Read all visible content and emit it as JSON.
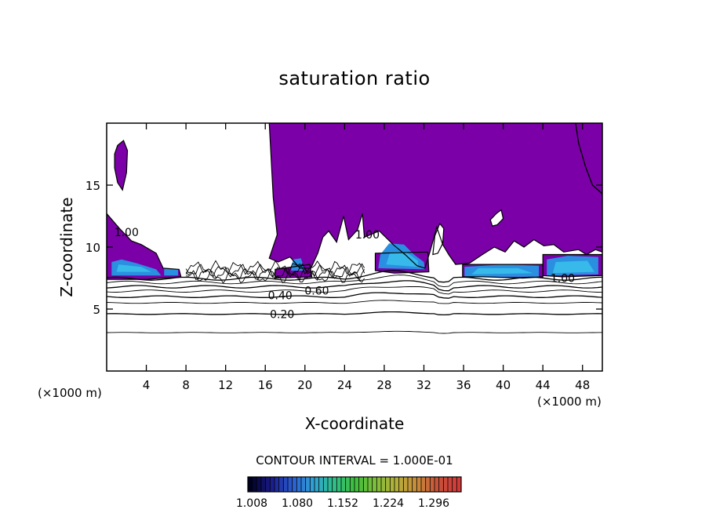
{
  "chart_data": {
    "type": "heatmap",
    "title": "saturation ratio",
    "xlabel": "X-coordinate",
    "ylabel": "Z-coordinate",
    "x_unit_left": "(×1000 m)",
    "x_unit_right": "(×1000 m)",
    "xlim": [
      0,
      50
    ],
    "ylim": [
      0,
      20
    ],
    "x_ticks": [
      4,
      8,
      12,
      16,
      20,
      24,
      28,
      32,
      36,
      40,
      44,
      48
    ],
    "x_tick_labels": [
      "4",
      "8",
      "12",
      "16",
      "20",
      "24",
      "28",
      "32",
      "36",
      "40",
      "44",
      "48"
    ],
    "y_ticks": [
      5,
      10,
      15
    ],
    "y_tick_labels": [
      "5",
      "10",
      "15"
    ],
    "contour_labels": [
      {
        "text": "0.20",
        "x": 17.7,
        "z": 4.6
      },
      {
        "text": "0.40",
        "x": 17.5,
        "z": 6.1
      },
      {
        "text": "0.60",
        "x": 21.2,
        "z": 6.5
      },
      {
        "text": "1.00",
        "x": 2.0,
        "z": 11.2
      },
      {
        "text": "1.00",
        "x": 26.3,
        "z": 11.0
      },
      {
        "text": "1.00",
        "x": 46.0,
        "z": 7.5
      }
    ],
    "contour_interval_text": "CONTOUR INTERVAL = 1.000E-01",
    "colorbar": {
      "range": [
        1.008,
        1.296
      ],
      "tick_labels": [
        "1.008",
        "1.080",
        "1.152",
        "1.224",
        "1.296"
      ],
      "colors": [
        "#000020",
        "#1a1a8a",
        "#2a5bd0",
        "#2fa0d8",
        "#2fbf8a",
        "#3cbf3c",
        "#7fbf3a",
        "#b5b03a",
        "#c98a3a",
        "#c7503a",
        "#d23a3a"
      ]
    },
    "fill_colors": {
      "saturated": "#7b00a8",
      "supersaturated_low": "#2a8fe0",
      "supersaturated_mid": "#37b9ea"
    }
  }
}
